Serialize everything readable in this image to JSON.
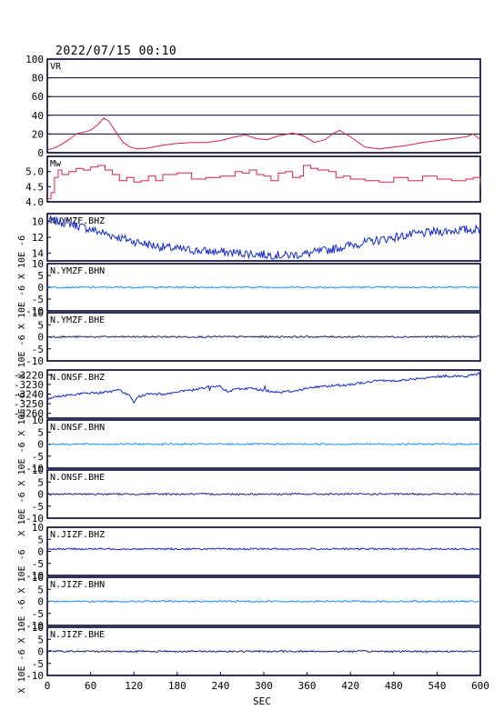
{
  "header": {
    "datetime": "2022/07/15 00:10"
  },
  "xaxis": {
    "label": "SEC",
    "ticks": [
      "0",
      "60",
      "120",
      "180",
      "240",
      "300",
      "360",
      "420",
      "480",
      "540",
      "600"
    ],
    "range": [
      0,
      600
    ]
  },
  "unit_label": "X 10E -6",
  "colors": {
    "frame": "#000033",
    "vr": "#d6224a",
    "mw": "#d6224a",
    "bhz": "#1428c8",
    "bhn": "#1e8cff",
    "bhe": "#1a1a7a"
  },
  "chart_data": [
    {
      "type": "line",
      "title": "VR",
      "ylim": [
        0,
        100
      ],
      "yticks": [
        "100",
        "80",
        "60",
        "40",
        "20",
        "0"
      ],
      "x": [
        0,
        10,
        20,
        30,
        40,
        50,
        60,
        70,
        78,
        85,
        95,
        105,
        115,
        125,
        140,
        160,
        180,
        200,
        220,
        240,
        260,
        275,
        290,
        305,
        320,
        340,
        355,
        370,
        385,
        395,
        405,
        420,
        440,
        460,
        480,
        500,
        520,
        540,
        560,
        580,
        590,
        600
      ],
      "values": [
        3,
        5,
        9,
        14,
        20,
        22,
        24,
        30,
        37,
        34,
        22,
        11,
        6,
        4,
        5,
        8,
        10,
        11,
        11,
        13,
        17,
        19,
        15,
        14,
        18,
        21,
        18,
        11,
        14,
        20,
        24,
        17,
        6,
        4,
        6,
        8,
        11,
        13,
        15,
        17,
        20,
        14
      ]
    },
    {
      "type": "line",
      "title": "Mw",
      "ylim": [
        4.0,
        5.5
      ],
      "yticks": [
        "5.0",
        "4.5",
        "4.0"
      ],
      "x": [
        0,
        5,
        10,
        15,
        20,
        30,
        40,
        50,
        60,
        70,
        80,
        90,
        100,
        110,
        120,
        130,
        140,
        150,
        160,
        180,
        200,
        220,
        240,
        260,
        270,
        280,
        290,
        300,
        310,
        320,
        330,
        340,
        350,
        355,
        365,
        375,
        390,
        400,
        410,
        420,
        440,
        460,
        480,
        500,
        520,
        540,
        560,
        580,
        590,
        600
      ],
      "values": [
        4.1,
        4.3,
        4.8,
        5.05,
        4.9,
        5.0,
        5.1,
        5.05,
        5.15,
        5.2,
        5.05,
        4.9,
        4.7,
        4.8,
        4.65,
        4.7,
        4.85,
        4.7,
        4.9,
        4.95,
        4.75,
        4.8,
        4.85,
        5.0,
        4.95,
        5.05,
        4.9,
        4.85,
        4.7,
        4.95,
        5.0,
        4.8,
        4.85,
        5.2,
        5.1,
        5.05,
        5.0,
        4.8,
        4.85,
        4.75,
        4.7,
        4.65,
        4.8,
        4.7,
        4.85,
        4.75,
        4.7,
        4.75,
        4.8,
        4.6
      ]
    },
    {
      "type": "line",
      "title": "N.YMZF.BHZ",
      "ylim": [
        -15,
        -9
      ],
      "yticks": [
        "10",
        "12",
        "14"
      ],
      "x": [
        0,
        30,
        60,
        90,
        120,
        150,
        180,
        210,
        240,
        270,
        300,
        330,
        360,
        390,
        420,
        450,
        480,
        510,
        540,
        570,
        600
      ],
      "values": [
        -9.8,
        -10.2,
        -11.0,
        -11.8,
        -12.5,
        -13.1,
        -13.5,
        -13.7,
        -13.9,
        -14.0,
        -14.2,
        -14.3,
        -14.1,
        -13.6,
        -13.0,
        -12.5,
        -12.0,
        -11.6,
        -11.3,
        -11.1,
        -11.0
      ]
    },
    {
      "type": "line",
      "title": "N.YMZF.BHN",
      "ylim": [
        -10,
        10
      ],
      "yticks": [
        "10",
        "5",
        "0",
        "-5",
        "-10"
      ],
      "x": [
        0,
        600
      ],
      "values": [
        0,
        0
      ]
    },
    {
      "type": "line",
      "title": "N.YMZF.BHE",
      "ylim": [
        -10,
        10
      ],
      "yticks": [
        "10",
        "5",
        "0",
        "-5",
        "-10"
      ],
      "x": [
        0,
        600
      ],
      "values": [
        0,
        0
      ]
    },
    {
      "type": "line",
      "title": "N.ONSF.BHZ",
      "ylim": [
        -3265,
        -3215
      ],
      "yticks": [
        "-3220",
        "-3230",
        "-3240",
        "-3250",
        "-3260"
      ],
      "x": [
        0,
        20,
        40,
        60,
        80,
        100,
        115,
        120,
        125,
        140,
        160,
        180,
        200,
        220,
        240,
        250,
        260,
        280,
        300,
        320,
        340,
        360,
        380,
        400,
        420,
        440,
        460,
        480,
        500,
        520,
        540,
        560,
        580,
        600
      ],
      "values": [
        -3245,
        -3242,
        -3240,
        -3239,
        -3238,
        -3236,
        -3242,
        -3250,
        -3243,
        -3240,
        -3240,
        -3238,
        -3236,
        -3233,
        -3232,
        -3238,
        -3235,
        -3234,
        -3236,
        -3238,
        -3237,
        -3234,
        -3232,
        -3231,
        -3230,
        -3228,
        -3226,
        -3226,
        -3225,
        -3224,
        -3222,
        -3221,
        -3222,
        -3218
      ]
    },
    {
      "type": "line",
      "title": "N.ONSF.BHN",
      "ylim": [
        -10,
        10
      ],
      "yticks": [
        "10",
        "5",
        "0",
        "-5",
        "-10"
      ],
      "x": [
        0,
        600
      ],
      "values": [
        0,
        0
      ]
    },
    {
      "type": "line",
      "title": "N.ONSF.BHE",
      "ylim": [
        -10,
        10
      ],
      "yticks": [
        "10",
        "5",
        "0",
        "-5",
        "-10"
      ],
      "x": [
        0,
        600
      ],
      "values": [
        0,
        0
      ]
    },
    {
      "type": "line",
      "title": "N.JIZF.BHZ",
      "ylim": [
        -10,
        10
      ],
      "yticks": [
        "10",
        "5",
        "0",
        "-5",
        "-10"
      ],
      "x": [
        0,
        600
      ],
      "values": [
        1,
        1
      ]
    },
    {
      "type": "line",
      "title": "N.JIZF.BHN",
      "ylim": [
        -10,
        10
      ],
      "yticks": [
        "10",
        "5",
        "0",
        "-5",
        "-10"
      ],
      "x": [
        0,
        600
      ],
      "values": [
        0,
        0
      ]
    },
    {
      "type": "line",
      "title": "N.JIZF.BHE",
      "ylim": [
        -10,
        10
      ],
      "yticks": [
        "10",
        "5",
        "0",
        "-5",
        "-10"
      ],
      "x": [
        0,
        600
      ],
      "values": [
        0,
        0
      ]
    }
  ]
}
